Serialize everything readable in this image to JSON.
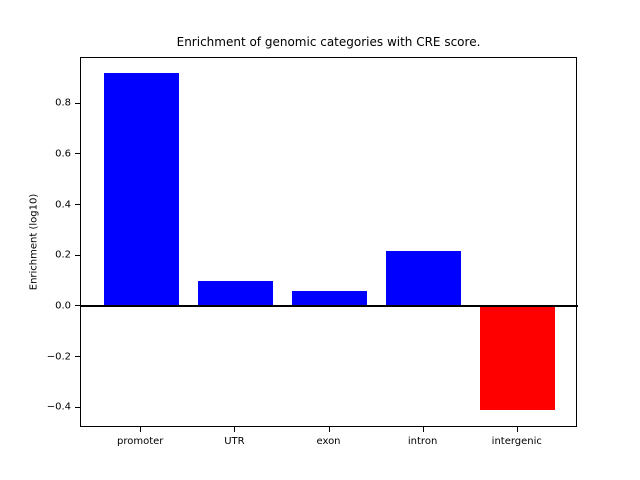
{
  "figure": {
    "background_color": "#ffffff",
    "axis_color": "#000000"
  },
  "chart_data": {
    "type": "bar",
    "title": "Enrichment of genomic categories with CRE score.",
    "xlabel": "",
    "ylabel": "Enrichment (log10)",
    "categories": [
      "promoter",
      "UTR",
      "exon",
      "intron",
      "intergenic"
    ],
    "values": [
      0.92,
      0.1,
      0.06,
      0.22,
      -0.41
    ],
    "bar_colors": [
      "#0000ff",
      "#0000ff",
      "#0000ff",
      "#0000ff",
      "#ff0000"
    ],
    "positive_color": "#0000ff",
    "negative_color": "#ff0000",
    "ylim": [
      -0.48,
      0.98
    ],
    "xlim": [
      -0.64,
      4.64
    ],
    "bar_width": 0.8,
    "yticks": [
      0.8,
      0.6,
      0.4,
      0.2,
      0.0,
      -0.2,
      -0.4
    ],
    "ytick_labels": [
      "0.8",
      "0.6",
      "0.4",
      "0.2",
      "0.0",
      "−0.2",
      "−0.4"
    ],
    "zero_line": true,
    "zero_line_color": "#000000",
    "grid": false,
    "legend": null
  }
}
